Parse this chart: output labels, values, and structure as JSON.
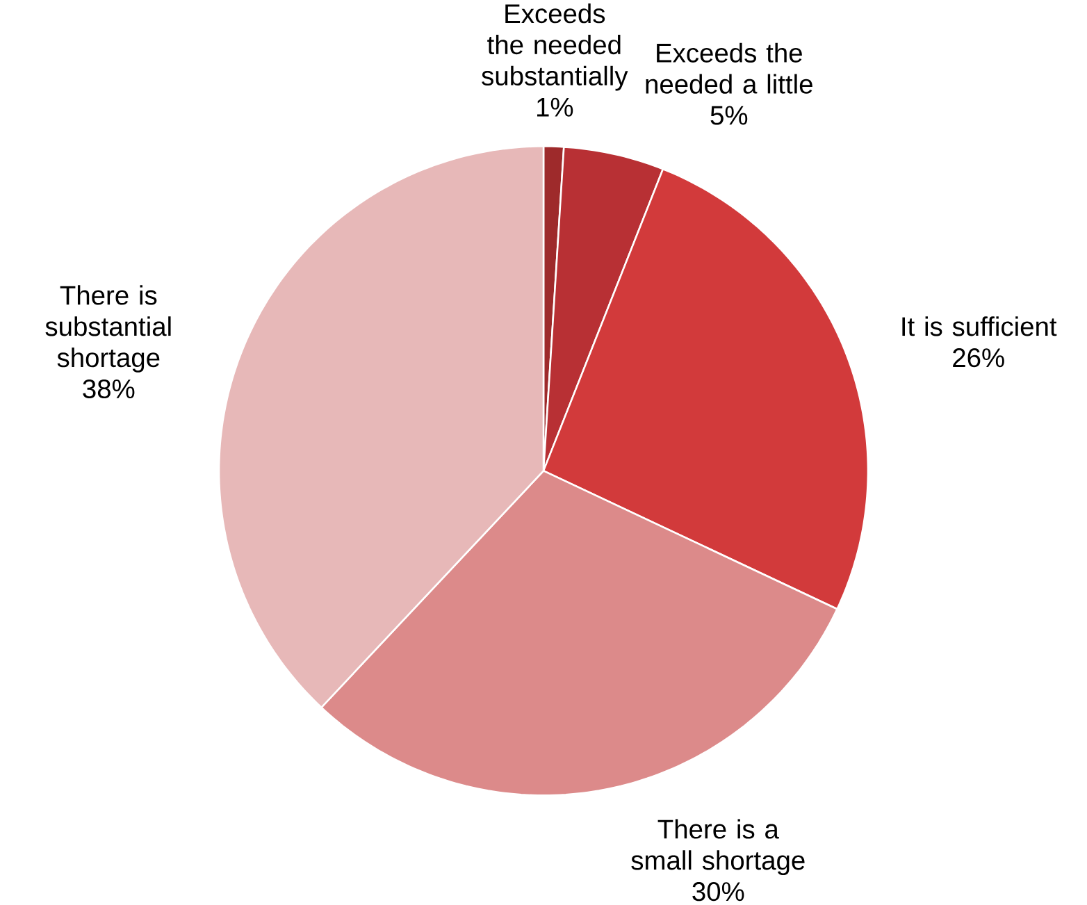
{
  "chart_data": {
    "type": "pie",
    "categories": [
      "Exceeds the needed substantially",
      "Exceeds the needed a little",
      "It is sufficient",
      "There is a small shortage",
      "There is substantial shortage"
    ],
    "values": [
      1,
      5,
      26,
      30,
      38
    ],
    "value_labels": [
      "1%",
      "5%",
      "26%",
      "30%",
      "38%"
    ],
    "colors": [
      "#9e2a2b",
      "#b83034",
      "#d23a3b",
      "#dc8a8a",
      "#e7b8b8"
    ]
  }
}
